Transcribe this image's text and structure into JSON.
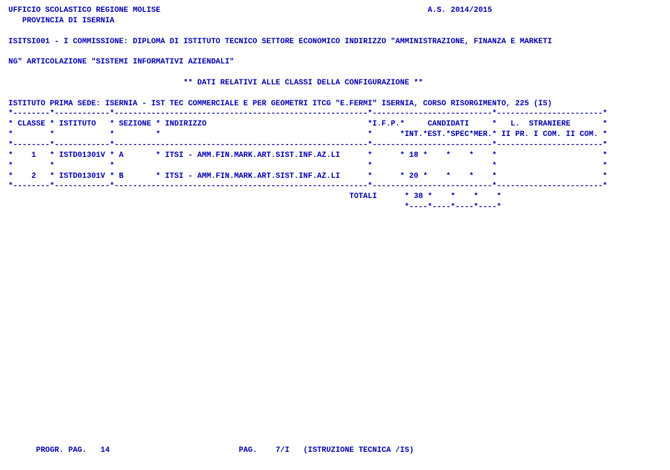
{
  "header": {
    "office": "UFFICIO SCOLASTICO REGIONE MOLISE",
    "year": "A.S. 2014/2015",
    "province": "PROVINCIA DI ISERNIA",
    "commission": "ISITSI001 - I COMMISSIONE: DIPLOMA DI ISTITUTO TECNICO SETTORE ECONOMICO INDIRIZZO \"AMMINISTRAZIONE, FINANZA E MARKETI",
    "commission2": "NG\" ARTICOLAZIONE \"SISTEMI INFORMATIVI AZIENDALI\"",
    "config_title": "** DATI RELATIVI ALLE CLASSI DELLA CONFIGURAZIONE **",
    "sede": "ISTITUTO PRIMA SEDE: ISERNIA - IST TEC COMMERCIALE E PER GEOMETRI ITCG \"E.FERMI\" ISERNIA, CORSO RISORGIMENTO, 225 (IS)"
  },
  "table": {
    "sep_top": "*--------*------------*-------------------------------------------------------*--------------------------*-----------------------*",
    "head1": "* CLASSE * ISTITUTO   * SEZIONE * INDIRIZZO                                   *I.F.P.*     CANDIDATI     *   L.  STRANIERE       *",
    "head2": "*        *            *         *                                             *      *INT.*EST.*SPEC*MER.* II PR. I COM. II COM. *",
    "sep_mid": "*--------*------------*-------------------------------------------------------*--------------------------*-----------------------*",
    "row1": "*    1   * ISTD01301V * A       * ITSI - AMM.FIN.MARK.ART.SIST.INF.AZ.LI      *      * 18 *    *    *    *                       *",
    "rowblank": "*        *            *                                                       *                          *                       *",
    "row2": "*    2   * ISTD01301V * B       * ITSI - AMM.FIN.MARK.ART.SIST.INF.AZ.LI      *      * 20 *    *    *    *                       *",
    "sep_bot": "*--------*------------*-------------------------------------------------------*--------------------------*-----------------------*",
    "totali": "                                                                          TOTALI      * 38 *    *    *    *",
    "totali_sep": "                                                                                      *----*----*----*----*"
  },
  "footer": {
    "left": "PROGR. PAG.   14",
    "right": "PAG.    7/I   (ISTRUZIONE TECNICA /IS)"
  }
}
